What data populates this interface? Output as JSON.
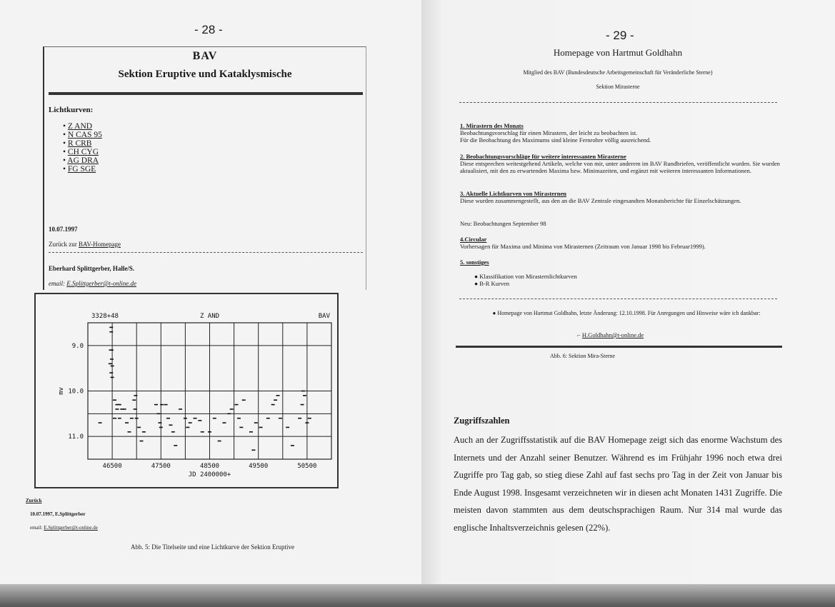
{
  "left_page": {
    "page_number": "- 28 -",
    "screenshot": {
      "title": "BAV",
      "subtitle": "Sektion Eruptive und Kataklysmische",
      "section_label": "Lichtkurven:",
      "links": [
        "Z AND",
        "N CAS 95",
        "R CRB",
        "CH CYG",
        "AG DRA",
        "FG SGE"
      ],
      "date": "10.07.1997",
      "back_prefix": "Zurück zur",
      "back_link": "BAV-Homepage",
      "author": "Eberhard Splittgerber, Halle/S.",
      "email_label": "email:",
      "email": "E.Splittgerber@t-online.de"
    },
    "lightcurve_footer": {
      "back": "Zurück",
      "date_author": "10.07.1997, E.Splittgerber",
      "email_label": "email:",
      "email": "E.Splittgerber@t-online.de"
    },
    "caption": "Abb. 5: Die Titelseite und eine Lichtkurve der Sektion Eruptive"
  },
  "chart_data": {
    "type": "scatter",
    "title": "Z AND",
    "top_left_label": "3328+48",
    "top_right_label": "BAV",
    "xlabel": "JD 2400000+",
    "ylabel": "mv",
    "xlim": [
      46000,
      51000
    ],
    "ylim": [
      11.5,
      8.5
    ],
    "y_inverted": true,
    "xticks": [
      "46500",
      "47500",
      "48500",
      "49500",
      "50500"
    ],
    "yticks": [
      "9.0",
      "10.0",
      "11.0"
    ],
    "grid": true,
    "points": [
      [
        46480,
        8.6
      ],
      [
        46480,
        8.7
      ],
      [
        46470,
        9.1
      ],
      [
        46490,
        9.1
      ],
      [
        46490,
        9.3
      ],
      [
        46460,
        9.4
      ],
      [
        46500,
        9.45
      ],
      [
        46480,
        9.6
      ],
      [
        46500,
        9.7
      ],
      [
        46250,
        10.7
      ],
      [
        46550,
        10.2
      ],
      [
        46600,
        10.3
      ],
      [
        46650,
        10.3
      ],
      [
        46700,
        10.4
      ],
      [
        46600,
        10.4
      ],
      [
        46550,
        10.6
      ],
      [
        46650,
        10.6
      ],
      [
        46750,
        10.4
      ],
      [
        46800,
        10.7
      ],
      [
        46900,
        10.6
      ],
      [
        46850,
        10.9
      ],
      [
        46950,
        10.2
      ],
      [
        46980,
        10.1
      ],
      [
        46970,
        10.4
      ],
      [
        47000,
        10.6
      ],
      [
        47050,
        10.8
      ],
      [
        47100,
        11.1
      ],
      [
        47150,
        10.9
      ],
      [
        47400,
        10.3
      ],
      [
        47450,
        10.5
      ],
      [
        47480,
        10.7
      ],
      [
        47520,
        10.3
      ],
      [
        47500,
        10.8
      ],
      [
        47600,
        10.3
      ],
      [
        47650,
        10.6
      ],
      [
        47750,
        10.9
      ],
      [
        47700,
        10.75
      ],
      [
        47800,
        11.2
      ],
      [
        47900,
        10.4
      ],
      [
        48000,
        10.6
      ],
      [
        48050,
        10.8
      ],
      [
        48100,
        10.7
      ],
      [
        48200,
        10.6
      ],
      [
        48300,
        10.65
      ],
      [
        48350,
        10.9
      ],
      [
        48500,
        10.9
      ],
      [
        48600,
        10.6
      ],
      [
        48700,
        11.1
      ],
      [
        48800,
        10.7
      ],
      [
        48900,
        10.5
      ],
      [
        48950,
        10.4
      ],
      [
        49050,
        10.3
      ],
      [
        49100,
        10.6
      ],
      [
        49150,
        10.8
      ],
      [
        49200,
        10.2
      ],
      [
        49350,
        10.9
      ],
      [
        49400,
        11.3
      ],
      [
        49450,
        10.7
      ],
      [
        49550,
        10.8
      ],
      [
        49700,
        10.6
      ],
      [
        49800,
        10.3
      ],
      [
        49850,
        10.2
      ],
      [
        49900,
        10.1
      ],
      [
        49950,
        10.6
      ],
      [
        50100,
        10.8
      ],
      [
        50200,
        11.2
      ],
      [
        50350,
        10.6
      ],
      [
        50400,
        10.3
      ],
      [
        50450,
        10.1
      ],
      [
        50420,
        10.0
      ],
      [
        50500,
        10.7
      ],
      [
        50550,
        10.6
      ]
    ]
  },
  "right_page": {
    "page_number": "- 29 -",
    "title": "Homepage von Hartmut Goldhahn",
    "member_line": "Mitglied des BAV (Bundesdeutsche Arbeitsgemeinschaft für Veränderliche Sterne)",
    "section": "Sektion Mirasterne",
    "items": [
      {
        "heading": "1. Mirastern des Monats",
        "text": "Beobachtungsvorschlag für einen Mirastern, der leicht zu beobachten ist.\nFür die Beobachtung des Maximums sind kleine Fernrohre völlig ausreichend."
      },
      {
        "heading": "2. Beobachtungsvorschläge für weitere interessanten Mirasterne",
        "text": "Diese entsprechen weitestgehend Artikeln, welche von mir, unter anderem im BAV Rundbriefen, veröffentlicht wurden. Sie wurden aktualisiert, mit den zu erwartenden Maxima bzw. Minimazeiten, und ergänzt mit weiteren interessanten Informationen."
      },
      {
        "heading": "3. Aktuelle Lichtkurven von Mirasternen",
        "text": "Diese wurden zusammengestellt, aus den an die BAV Zentrale eingesandten Monatsberichte für Einzelschätzungen."
      },
      {
        "heading": "",
        "text": "Neu: Beobachtungen September 98"
      },
      {
        "heading": "4.Circular",
        "text": "Vorhersagen für Maxima und Minima von Mirasternen (Zeitraum von Januar 1998 bis Februar1999)."
      },
      {
        "heading": "5. sonstiges",
        "text": ""
      }
    ],
    "misc_list": [
      "Klassifikation von Mirasternlichtkurven",
      "B-R Kurven"
    ],
    "footer_note": "Homepage von Hartmut Goldhahn, letzte Änderung: 12.10.1998. Für Anregungen und Hinweise wäre ich dankbar:",
    "email": "H.Goldhahn@t-online.de",
    "caption": "Abb. 6: Sektion Mira-Sterne",
    "section_heading": "Zugriffszahlen",
    "paragraph": "Auch an der Zugriffsstatistik auf die BAV Homepage zeigt sich das enorme Wachstum des Internets und der Anzahl seiner Benutzer. Während es im Frühjahr 1996 noch etwa drei Zugriffe pro Tag gab, so stieg diese Zahl auf fast sechs pro Tag in der Zeit von Januar bis Ende August 1998. Insgesamt verzeichneten wir in diesen acht Monaten 1431 Zugriffe. Die meisten davon stammten aus dem deutschsprachigen Raum. Nur 314 mal wurde das englische Inhaltsverzeichnis gelesen (22%)."
  }
}
